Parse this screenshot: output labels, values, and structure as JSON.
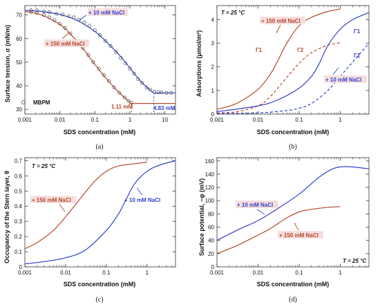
{
  "colors": {
    "blue": "#2e3fd0",
    "red": "#b5482c",
    "marker": "#444444",
    "label_bg": "#f7dede"
  },
  "chart_data": [
    {
      "id": "a",
      "type": "scatter",
      "panel_label": "(a)",
      "xlabel": "SDS concentration (mM)",
      "ylabel": "Surface tension, σ (mN/m)",
      "xscale": "log",
      "xlim": [
        0.001,
        20
      ],
      "ylim": [
        28,
        74
      ],
      "xticks": [
        0.001,
        0.01,
        0.1,
        1,
        10
      ],
      "xtick_labels": [
        "0.001",
        "0.01",
        "0.1",
        "1",
        "10"
      ],
      "yticks": [
        30,
        40,
        50,
        60,
        70
      ],
      "ytick_labels": [
        "30",
        "40",
        "50",
        "60",
        "70"
      ],
      "legend": "MBPM",
      "annotations": [
        "+ 10 mM NaCl",
        "+ 150 mM NaCl",
        "1.11 mM",
        "4.83 mM"
      ],
      "series": [
        {
          "name": "+ 10 mM NaCl",
          "color": "blue",
          "curve": {
            "x": [
              0.001,
              0.003,
              0.01,
              0.03,
              0.1,
              0.2,
              0.5,
              1,
              2,
              3,
              4.83,
              7,
              10,
              20
            ],
            "y": [
              72,
              71.5,
              70.2,
              67.8,
              63,
              59,
              53,
              47.5,
              42,
              39.5,
              37,
              37,
              37,
              37
            ]
          },
          "points": {
            "x": [
              0.0015,
              0.0022,
              0.0035,
              0.005,
              0.008,
              0.012,
              0.018,
              0.025,
              0.035,
              0.05,
              0.07,
              0.1,
              0.14,
              0.2,
              0.28,
              0.4,
              0.55,
              0.75,
              1,
              1.3,
              1.7,
              2.2,
              3,
              3.8,
              5,
              6.5,
              8,
              11,
              15
            ],
            "y": [
              72,
              72,
              71.5,
              71.2,
              70.5,
              70.2,
              69.5,
              69,
              68,
              66.8,
              65.5,
              63.5,
              61.5,
              59,
              56.8,
              54.2,
              51.8,
              49.5,
              47.2,
              45.2,
              42.8,
              41.2,
              39.2,
              38.4,
              37.5,
              37.2,
              37.2,
              37,
              37
            ]
          }
        },
        {
          "name": "+ 150 mM NaCl",
          "color": "red",
          "curve": {
            "x": [
              0.001,
              0.003,
              0.01,
              0.02,
              0.05,
              0.1,
              0.2,
              0.4,
              0.7,
              1,
              1.11,
              2,
              5,
              20
            ],
            "y": [
              71.5,
              70,
              66,
              62,
              55,
              49,
              43.5,
              38.5,
              35,
              33,
              32.5,
              32.5,
              32.5,
              32.5
            ]
          },
          "points": {
            "x": [
              0.0015,
              0.0022,
              0.0035,
              0.005,
              0.007,
              0.01,
              0.014,
              0.02,
              0.03,
              0.045,
              0.065,
              0.09,
              0.13,
              0.18,
              0.25,
              0.35,
              0.5,
              0.7,
              0.9,
              1.1
            ],
            "y": [
              71.3,
              70.8,
              70,
              69,
              67.8,
              66.2,
              64.5,
              62.2,
              59,
              56,
              53,
              50,
              47.2,
              44.5,
              42,
              39.3,
              37,
              35,
              33.5,
              32.8
            ]
          }
        }
      ]
    },
    {
      "id": "b",
      "type": "line",
      "panel_label": "(b)",
      "xlabel": "SDS concentration (mM)",
      "ylabel": "Adsorptions (μmol/m²)",
      "xscale": "log",
      "xlim": [
        0.001,
        5
      ],
      "ylim": [
        0,
        4.6
      ],
      "xticks": [
        0.001,
        0.01,
        0.1,
        1
      ],
      "xtick_labels": [
        "0.001",
        "0.01",
        "0.1",
        "1"
      ],
      "yticks": [
        0,
        1,
        2,
        3,
        4
      ],
      "ytick_labels": [
        "0",
        "1",
        "2",
        "3",
        "4"
      ],
      "annotations": [
        "T = 25 °C",
        "+ 150 mM NaCl",
        "+ 10 mM NaCl",
        "Γ1",
        "Γ2",
        "Γ1",
        "Γ2"
      ],
      "series": [
        {
          "name": "Γ1 + 150 mM NaCl",
          "color": "red",
          "dashed": false,
          "x": [
            0.001,
            0.003,
            0.01,
            0.02,
            0.03,
            0.05,
            0.1,
            0.2,
            0.5,
            1
          ],
          "y": [
            0.2,
            0.45,
            1.05,
            1.7,
            2.25,
            3.0,
            3.75,
            4.1,
            4.35,
            4.45
          ]
        },
        {
          "name": "Γ2 + 150 mM NaCl",
          "color": "red",
          "dashed": true,
          "x": [
            0.001,
            0.003,
            0.01,
            0.02,
            0.05,
            0.1,
            0.2,
            0.5,
            1
          ],
          "y": [
            0.05,
            0.1,
            0.35,
            0.75,
            1.55,
            2.15,
            2.6,
            2.92,
            3.02
          ]
        },
        {
          "name": "Γ1 + 10 mM NaCl",
          "color": "blue",
          "dashed": false,
          "x": [
            0.001,
            0.01,
            0.03,
            0.1,
            0.2,
            0.3,
            0.5,
            1,
            2,
            5
          ],
          "y": [
            0.1,
            0.35,
            0.6,
            1.1,
            1.6,
            2.1,
            2.9,
            3.6,
            4.0,
            4.3
          ]
        },
        {
          "name": "Γ2 + 10 mM NaCl",
          "color": "blue",
          "dashed": true,
          "x": [
            0.001,
            0.01,
            0.05,
            0.1,
            0.2,
            0.5,
            1,
            2,
            5
          ],
          "y": [
            0.02,
            0.05,
            0.15,
            0.25,
            0.45,
            1.0,
            1.6,
            2.2,
            3.0
          ]
        }
      ]
    },
    {
      "id": "c",
      "type": "line",
      "panel_label": "(c)",
      "xlabel": "SDS concentration (mM)",
      "ylabel": "Occupancy of the Stern layer, θ",
      "xscale": "log",
      "xlim": [
        0.001,
        5
      ],
      "ylim": [
        0,
        0.72
      ],
      "xticks": [
        0.001,
        0.01,
        0.1,
        1
      ],
      "xtick_labels": [
        "0.001",
        "0.01",
        "0.1",
        "1"
      ],
      "yticks": [
        0,
        0.1,
        0.2,
        0.3,
        0.4,
        0.5,
        0.6,
        0.7
      ],
      "ytick_labels": [
        "0",
        "0.1",
        "0.2",
        "0.3",
        "0.4",
        "0.5",
        "0.6",
        "0.7"
      ],
      "annotations": [
        "T = 25 °C",
        "+ 150 mM NaCl",
        "+ 10 mM NaCl"
      ],
      "series": [
        {
          "name": "+ 150 mM NaCl",
          "color": "red",
          "x": [
            0.001,
            0.002,
            0.005,
            0.01,
            0.02,
            0.05,
            0.1,
            0.2,
            0.5,
            1
          ],
          "y": [
            0.12,
            0.16,
            0.24,
            0.33,
            0.43,
            0.56,
            0.63,
            0.665,
            0.68,
            0.69
          ]
        },
        {
          "name": "+ 10 mM NaCl",
          "color": "blue",
          "x": [
            0.001,
            0.003,
            0.01,
            0.03,
            0.1,
            0.2,
            0.3,
            0.5,
            1,
            2,
            5
          ],
          "y": [
            0.02,
            0.035,
            0.06,
            0.11,
            0.24,
            0.35,
            0.44,
            0.55,
            0.63,
            0.67,
            0.7
          ]
        }
      ]
    },
    {
      "id": "d",
      "type": "line",
      "panel_label": "(d)",
      "xlabel": "SDS concentration (mM)",
      "ylabel": "Surface potential, −φ (mV)",
      "xscale": "log",
      "xlim": [
        0.001,
        5
      ],
      "ylim": [
        0,
        165
      ],
      "xticks": [
        0.001,
        0.01,
        0.1,
        1
      ],
      "xtick_labels": [
        "0.001",
        "0.01",
        "0.1",
        "1"
      ],
      "yticks": [
        0,
        20,
        40,
        60,
        80,
        100,
        120,
        140,
        160
      ],
      "ytick_labels": [
        "0",
        "20",
        "40",
        "60",
        "80",
        "100",
        "120",
        "140",
        "160"
      ],
      "annotations": [
        "T = 25 °C",
        "+ 10 mM NaCl",
        "+ 150 mM NaCl"
      ],
      "series": [
        {
          "name": "+ 10 mM NaCl",
          "color": "blue",
          "x": [
            0.001,
            0.003,
            0.01,
            0.03,
            0.1,
            0.3,
            0.6,
            1,
            2,
            5
          ],
          "y": [
            40,
            55,
            70,
            88,
            110,
            135,
            147,
            151,
            151,
            148
          ]
        },
        {
          "name": "+ 150 mM NaCl",
          "color": "red",
          "x": [
            0.001,
            0.003,
            0.01,
            0.02,
            0.05,
            0.1,
            0.2,
            0.5,
            1
          ],
          "y": [
            20,
            32,
            48,
            58,
            74,
            83,
            87,
            90,
            91
          ]
        }
      ]
    }
  ]
}
